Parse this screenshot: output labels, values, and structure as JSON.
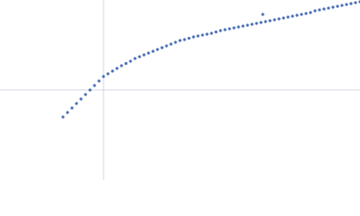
{
  "chart_data": {
    "type": "scatter",
    "x": [
      -45,
      -40,
      -35,
      -30,
      -25,
      -20,
      -15,
      -10,
      -5,
      0,
      5,
      10,
      15,
      20,
      25,
      30,
      35,
      40,
      45,
      50,
      55,
      60,
      65,
      70,
      75,
      80,
      85,
      90,
      95,
      100,
      105,
      110,
      115,
      120,
      125,
      130,
      135,
      140,
      145,
      150,
      155,
      160,
      165,
      170,
      175,
      177,
      180,
      185,
      190,
      195,
      200,
      205,
      210,
      215,
      220,
      225,
      230,
      235,
      240,
      245,
      250,
      255,
      260,
      265,
      270,
      275,
      280,
      285
    ],
    "y": [
      -30,
      -25,
      -20,
      -15,
      -10,
      -5,
      0,
      5,
      10,
      15,
      18,
      21,
      24,
      27,
      29.5,
      32,
      35,
      37,
      39,
      41,
      43,
      45,
      47,
      49,
      51,
      53,
      55,
      56,
      57.5,
      59,
      60,
      61,
      62,
      63,
      64.5,
      66,
      67,
      68,
      69,
      70,
      71,
      72,
      73,
      74,
      75,
      84,
      76,
      77,
      78,
      79,
      80,
      81,
      82,
      83,
      84,
      85,
      86,
      88,
      89,
      90,
      91,
      92,
      93,
      94,
      95,
      96,
      97,
      98
    ],
    "xlim": [
      -115,
      285
    ],
    "ylim": [
      -100,
      100
    ],
    "color": "#4a6fb5",
    "axis_lines": true
  }
}
